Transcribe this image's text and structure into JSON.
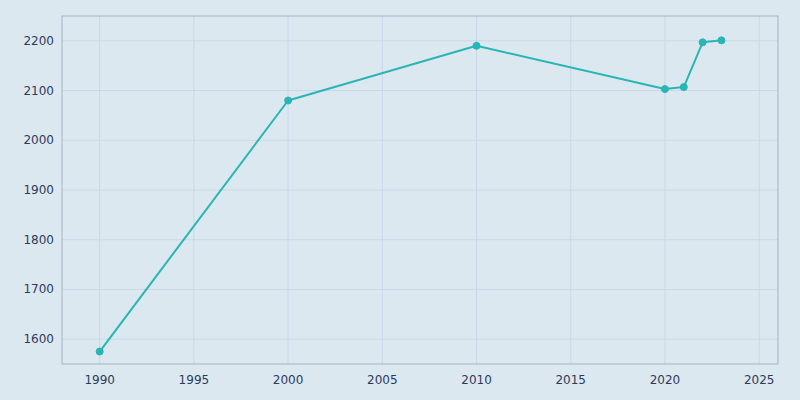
{
  "chart_data": {
    "type": "line",
    "x": [
      1990,
      2000,
      2010,
      2020,
      2021,
      2022,
      2023
    ],
    "values": [
      1575,
      2080,
      2190,
      2103,
      2107,
      2197,
      2201
    ],
    "color": "#2ab5b5",
    "marker": "circle",
    "xlim": [
      1988,
      2026
    ],
    "ylim": [
      1550,
      2250
    ],
    "xticks": [
      1990,
      1995,
      2000,
      2005,
      2010,
      2015,
      2020,
      2025
    ],
    "yticks": [
      1600,
      1700,
      1800,
      1900,
      2000,
      2100,
      2200
    ],
    "grid": true
  }
}
